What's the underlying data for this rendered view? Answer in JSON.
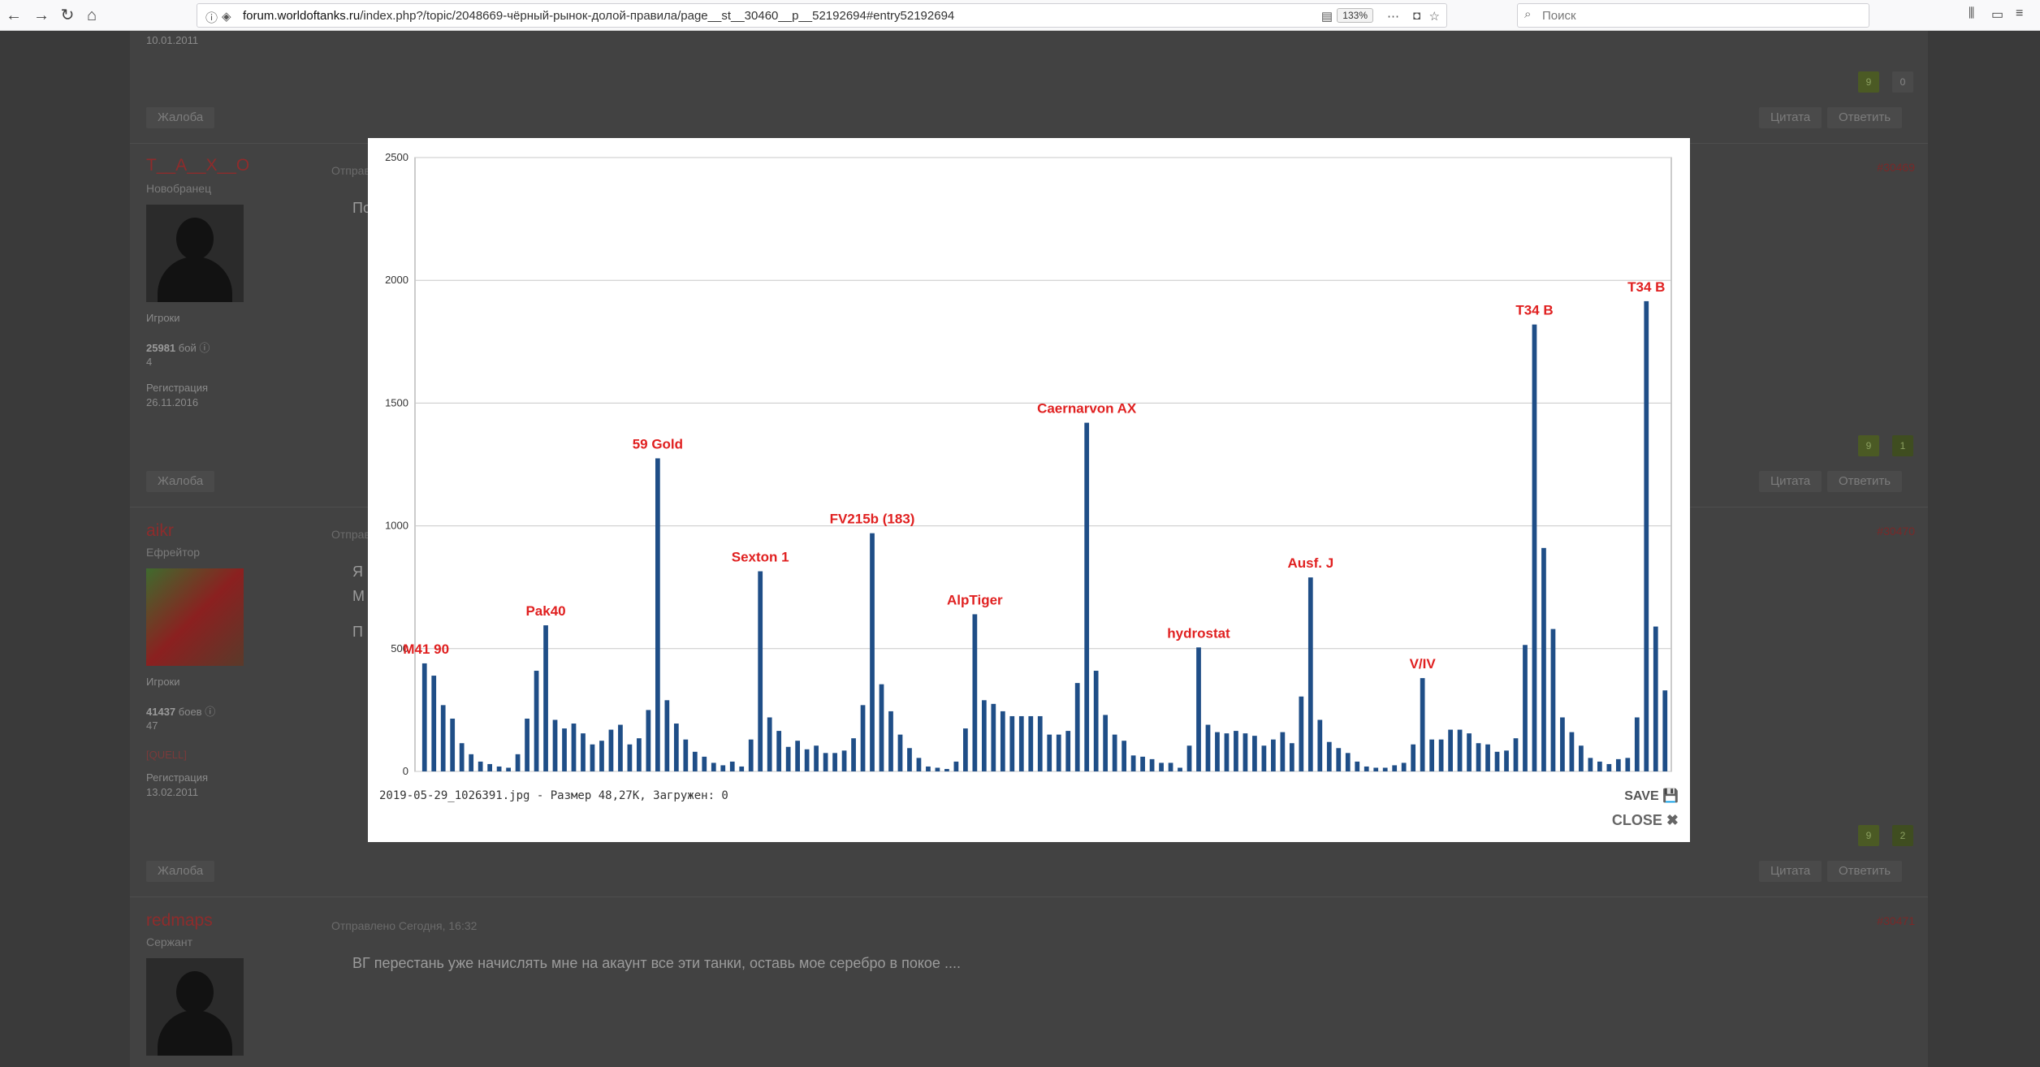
{
  "browser": {
    "url_host": "forum.worldoftanks.ru",
    "url_path": "/index.php?/topic/2048669-чёрный-рынок-долой-правила/page__st__30460__p__52192694#entry52192694",
    "zoom": "133%",
    "search_placeholder": "Поиск"
  },
  "page": {
    "top_date": "10.01.2011",
    "complain_label": "Жалоба",
    "quote_label": "Цитата",
    "reply_label": "Ответить",
    "posted_prefix": "Отправлено",
    "players_label": "Игроки",
    "registration_label": "Регистрация",
    "top_rep": [
      "9",
      "0"
    ],
    "posts": [
      {
        "name": "T__A__X__O",
        "rank": "Новобранец",
        "group": "Игроки",
        "battles": "25981",
        "battles_word": "бой",
        "extra": "4",
        "reg_date": "26.11.2016",
        "number": "#30469",
        "text": "По",
        "rep": [
          "9",
          "1"
        ]
      },
      {
        "name": "aikr",
        "rank": "Ефрейтор",
        "group": "Игроки",
        "battles": "41437",
        "battles_word": "боев",
        "extra": "47",
        "clan": "[QUELL]",
        "reg_date": "13.02.2011",
        "number": "#30470",
        "text_lines": [
          "Я",
          "М",
          "П"
        ],
        "rep": [
          "9",
          "2"
        ]
      },
      {
        "name": "redmaps",
        "rank": "Сержант",
        "posted": "Отправлено Сегодня, 16:32",
        "number": "#30471",
        "text": "ВГ перестань уже начислять мне на акаунт все эти танки, оставь мое серебро в покое ...."
      }
    ]
  },
  "lightbox": {
    "caption": "2019-05-29_1026391.jpg - Размер 48,27K, Загружен: 0",
    "save_label": "SAVE",
    "close_label": "CLOSE"
  },
  "chart_data": {
    "type": "bar",
    "ylim": [
      0,
      2500
    ],
    "yticks": [
      "0",
      "500",
      "1000",
      "1500",
      "2000",
      "2500"
    ],
    "grid": true,
    "bar_color": "#1f4e87",
    "label_color": "#e02020",
    "values": [
      440,
      390,
      270,
      215,
      115,
      70,
      40,
      30,
      20,
      15,
      70,
      215,
      410,
      595,
      210,
      175,
      195,
      155,
      110,
      125,
      170,
      190,
      110,
      135,
      250,
      1275,
      290,
      195,
      130,
      80,
      60,
      35,
      25,
      40,
      20,
      130,
      815,
      220,
      165,
      100,
      125,
      90,
      105,
      75,
      75,
      85,
      135,
      270,
      970,
      355,
      245,
      150,
      95,
      55,
      20,
      15,
      10,
      40,
      175,
      640,
      290,
      275,
      245,
      225,
      225,
      225,
      225,
      150,
      150,
      165,
      360,
      1420,
      410,
      230,
      150,
      125,
      65,
      60,
      50,
      35,
      35,
      15,
      105,
      505,
      190,
      160,
      155,
      165,
      155,
      145,
      105,
      130,
      160,
      115,
      305,
      790,
      210,
      120,
      95,
      75,
      40,
      20,
      15,
      15,
      25,
      35,
      110,
      380,
      130,
      130,
      170,
      170,
      155,
      115,
      110,
      80,
      85,
      135,
      515,
      1820,
      910,
      580,
      220,
      160,
      105,
      55,
      40,
      30,
      50,
      55,
      220,
      1915,
      590,
      330
    ],
    "annotations": [
      {
        "label": "M41 90",
        "index": 0,
        "value": 440
      },
      {
        "label": "Pak40",
        "index": 13,
        "value": 595
      },
      {
        "label": "59 Gold",
        "index": 25,
        "value": 1275
      },
      {
        "label": "Sexton 1",
        "index": 36,
        "value": 815
      },
      {
        "label": "FV215b (183)",
        "index": 48,
        "value": 970
      },
      {
        "label": "AlpTiger",
        "index": 59,
        "value": 640
      },
      {
        "label": "Caernarvon AX",
        "index": 71,
        "value": 1420
      },
      {
        "label": "hydrostat",
        "index": 83,
        "value": 505
      },
      {
        "label": "Ausf. J",
        "index": 95,
        "value": 790
      },
      {
        "label": "V/IV",
        "index": 107,
        "value": 380
      },
      {
        "label": "T34 B",
        "index": 119,
        "value": 1820
      },
      {
        "label": "T34 B",
        "index": 131,
        "value": 1915
      }
    ]
  }
}
